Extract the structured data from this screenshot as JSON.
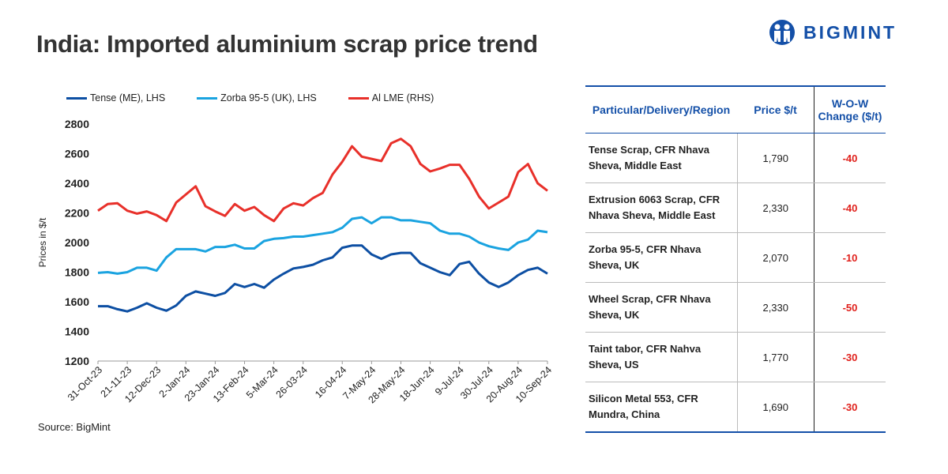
{
  "title": "India: Imported aluminium scrap price trend",
  "logo": "BIGMINT",
  "source": "Source: BigMint",
  "chart_data": {
    "type": "line",
    "title": "India: Imported aluminium scrap price trend",
    "ylabel": "Prices in $/t",
    "ylim": [
      1200,
      2800
    ],
    "yticks": [
      "1200",
      "1400",
      "1600",
      "1800",
      "2000",
      "2200",
      "2400",
      "2600",
      "2800"
    ],
    "xticks": [
      "31-Oct-23",
      "21-11-23",
      "12-Dec-23",
      "2-Jan-24",
      "23-Jan-24",
      "13-Feb-24",
      "5-Mar-24",
      "26-03-24",
      "16-04-24",
      "7-May-24",
      "28-May-24",
      "18-Jun-24",
      "9-Jul-24",
      "30-Jul-24",
      "20-Aug-24",
      "10-Sep-24"
    ],
    "legend_position": "top",
    "series": [
      {
        "name": "Tense (ME), LHS",
        "color": "#0d4fa3",
        "values": [
          1570,
          1570,
          1550,
          1535,
          1560,
          1590,
          1560,
          1540,
          1575,
          1640,
          1670,
          1655,
          1640,
          1660,
          1720,
          1700,
          1720,
          1695,
          1750,
          1790,
          1825,
          1835,
          1850,
          1880,
          1900,
          1965,
          1980,
          1980,
          1920,
          1890,
          1920,
          1930,
          1930,
          1860,
          1830,
          1800,
          1780,
          1855,
          1870,
          1790,
          1730,
          1700,
          1730,
          1780,
          1815,
          1830,
          1790
        ]
      },
      {
        "name": "Zorba 95-5 (UK), LHS",
        "color": "#1aa3e0",
        "values": [
          1795,
          1800,
          1790,
          1800,
          1830,
          1830,
          1810,
          1900,
          1955,
          1955,
          1955,
          1940,
          1970,
          1970,
          1985,
          1960,
          1960,
          2010,
          2025,
          2030,
          2040,
          2040,
          2050,
          2060,
          2070,
          2100,
          2160,
          2170,
          2130,
          2170,
          2170,
          2150,
          2150,
          2140,
          2130,
          2080,
          2060,
          2060,
          2040,
          2000,
          1975,
          1960,
          1950,
          2000,
          2020,
          2080,
          2070
        ]
      },
      {
        "name": "Al LME (RHS)",
        "color": "#e8302a",
        "values": [
          2215,
          2260,
          2265,
          2215,
          2195,
          2210,
          2185,
          2145,
          2270,
          2325,
          2380,
          2245,
          2210,
          2180,
          2260,
          2215,
          2240,
          2185,
          2145,
          2230,
          2265,
          2250,
          2300,
          2335,
          2460,
          2545,
          2650,
          2580,
          2565,
          2550,
          2670,
          2700,
          2650,
          2530,
          2480,
          2500,
          2525,
          2525,
          2430,
          2310,
          2230,
          2270,
          2310,
          2475,
          2530,
          2400,
          2350
        ]
      }
    ]
  },
  "table": {
    "headers": [
      "Particular/Delivery/Region",
      "Price $/t",
      "W-O-W Change ($/t)"
    ],
    "rows": [
      {
        "name": "Tense Scrap, CFR Nhava Sheva, Middle East",
        "price": "1,790",
        "change": "-40"
      },
      {
        "name": "Extrusion 6063 Scrap, CFR Nhava Sheva, Middle East",
        "price": "2,330",
        "change": "-40"
      },
      {
        "name": "Zorba 95-5, CFR Nhava Sheva, UK",
        "price": "2,070",
        "change": "-10"
      },
      {
        "name": "Wheel Scrap, CFR Nhava Sheva, UK",
        "price": "2,330",
        "change": "-50"
      },
      {
        "name": "Taint tabor, CFR Nahva Sheva, US",
        "price": "1,770",
        "change": "-30"
      },
      {
        "name": "Silicon Metal 553, CFR Mundra, China",
        "price": "1,690",
        "change": "-30"
      }
    ]
  }
}
